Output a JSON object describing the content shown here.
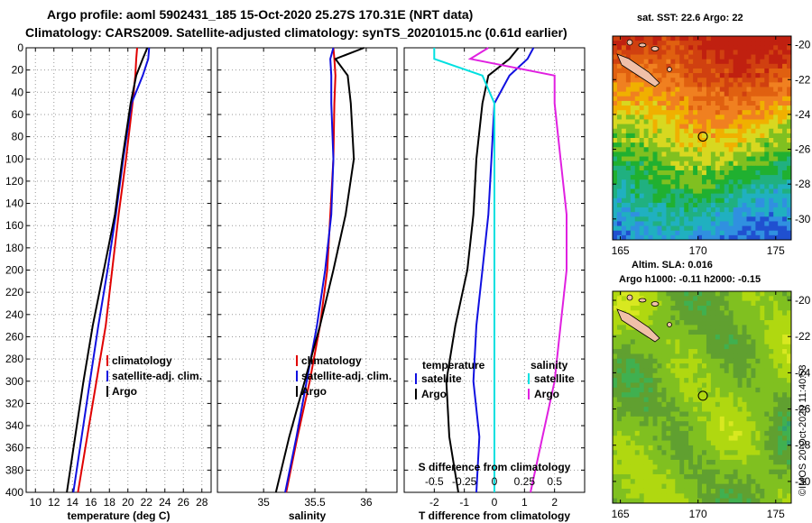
{
  "header": {
    "line1": "Argo profile: aoml 5902431_185 15-Oct-2020 25.27S 170.31E (NRT data)",
    "line2": "Climatology: CARS2009. Satellite-adjusted climatology: synTS_20201015.nc (0.61d earlier)"
  },
  "side_label": "©IMOS 20-Oct-2020 11:40:53",
  "chart_data": [
    {
      "type": "line",
      "id": "temperature",
      "xlabel": "temperature (deg C)",
      "ylabel": "",
      "xlim": [
        9,
        29
      ],
      "ylim": [
        400,
        0
      ],
      "xticks": [
        "10",
        "12",
        "14",
        "16",
        "18",
        "20",
        "22",
        "24",
        "26",
        "28"
      ],
      "yticks": [
        "0",
        "20",
        "40",
        "60",
        "80",
        "100",
        "120",
        "140",
        "160",
        "180",
        "200",
        "220",
        "240",
        "260",
        "280",
        "300",
        "320",
        "340",
        "360",
        "380",
        "400"
      ],
      "grid": true,
      "legend": {
        "position": "bottom-right",
        "entries": [
          "climatology",
          "satellite-adj. clim.",
          "Argo"
        ]
      },
      "depth": [
        0,
        10,
        25,
        50,
        100,
        150,
        200,
        250,
        300,
        350,
        400
      ],
      "series": [
        {
          "name": "climatology",
          "color": "#e00000",
          "values": [
            21.0,
            20.9,
            20.8,
            20.5,
            19.8,
            19.0,
            18.3,
            17.6,
            16.6,
            15.6,
            14.6
          ]
        },
        {
          "name": "satellite-adj. clim.",
          "color": "#1010e0",
          "values": [
            22.3,
            22.2,
            21.6,
            20.4,
            19.5,
            18.7,
            17.8,
            16.8,
            15.9,
            15.0,
            14.1
          ]
        },
        {
          "name": "Argo",
          "color": "#000000",
          "values": [
            22.1,
            21.6,
            20.9,
            20.3,
            19.4,
            18.6,
            17.4,
            16.2,
            15.2,
            14.3,
            13.4
          ]
        }
      ]
    },
    {
      "type": "line",
      "id": "salinity",
      "xlabel": "salinity",
      "xlim": [
        34.55,
        36.3
      ],
      "ylim": [
        400,
        0
      ],
      "xticks": [
        "35",
        "35.5",
        "36"
      ],
      "grid": true,
      "legend": {
        "position": "bottom-right",
        "entries": [
          "climatology",
          "satellite-adj. clim.",
          "Argo"
        ]
      },
      "depth": [
        0,
        10,
        25,
        50,
        100,
        150,
        200,
        250,
        300,
        350,
        400
      ],
      "series": [
        {
          "name": "climatology",
          "color": "#e00000",
          "values": [
            35.68,
            35.69,
            35.7,
            35.69,
            35.68,
            35.65,
            35.62,
            35.55,
            35.45,
            35.33,
            35.22
          ]
        },
        {
          "name": "satellite-adj. clim.",
          "color": "#1010e0",
          "values": [
            35.68,
            35.65,
            35.66,
            35.66,
            35.68,
            35.66,
            35.6,
            35.52,
            35.42,
            35.32,
            35.21
          ]
        },
        {
          "name": "Argo",
          "color": "#000000",
          "values": [
            35.98,
            35.7,
            35.82,
            35.85,
            35.88,
            35.8,
            35.68,
            35.55,
            35.4,
            35.25,
            35.12
          ]
        }
      ]
    },
    {
      "type": "line",
      "id": "difference",
      "xlabel": "T difference from climatology",
      "top_xlabel": "S difference from climatology",
      "xlim": [
        -3,
        3
      ],
      "ylim": [
        400,
        0
      ],
      "xticks": [
        "-2",
        "-1",
        "0",
        "1",
        "2"
      ],
      "top_xticks": [
        "-0.5",
        "-0.25",
        "0",
        "0.25",
        "0.5"
      ],
      "grid": true,
      "legend": {
        "position": "bottom",
        "temperature_title": "temperature",
        "salinity_title": "salinity",
        "entries": [
          "satellite",
          "Argo",
          "satellite",
          "Argo"
        ]
      },
      "depth": [
        0,
        10,
        25,
        50,
        100,
        150,
        200,
        250,
        300,
        350,
        400
      ],
      "series": [
        {
          "name": "T satellite",
          "color": "#1010e0",
          "values": [
            1.3,
            1.1,
            0.5,
            0.0,
            -0.1,
            -0.2,
            -0.4,
            -0.6,
            -0.7,
            -0.5,
            -0.6
          ]
        },
        {
          "name": "T Argo",
          "color": "#000000",
          "values": [
            0.8,
            0.5,
            -0.2,
            -0.4,
            -0.6,
            -0.7,
            -0.9,
            -1.3,
            -1.6,
            -1.5,
            -1.2
          ]
        },
        {
          "name": "S satellite",
          "color": "#00e0e0",
          "values": [
            -0.5,
            -0.5,
            -0.1,
            0.0,
            0.0,
            0.0,
            0.0,
            0.0,
            0.0,
            0.0,
            0.0
          ]
        },
        {
          "name": "S Argo",
          "color": "#e020e0",
          "values": [
            -0.05,
            -0.2,
            0.5,
            0.5,
            0.55,
            0.6,
            0.6,
            0.55,
            0.5,
            0.4,
            0.3
          ]
        }
      ]
    },
    {
      "type": "heatmap",
      "id": "sst-map",
      "title": "sat. SST: 22.6  Argo: 22",
      "x_ticks": [
        "165",
        "170",
        "175"
      ],
      "y_ticks": [
        "-20",
        "-22",
        "-24",
        "-26",
        "-28",
        "-30"
      ],
      "colors": [
        "#c02010",
        "#d04010",
        "#e06010",
        "#f08020",
        "#f0b000",
        "#d8d820",
        "#80c020",
        "#20b030",
        "#20b080",
        "#20b0c0",
        "#3090e0",
        "#2050d0"
      ]
    },
    {
      "type": "heatmap",
      "id": "sla-map",
      "title": "Altim. SLA: 0.016",
      "subtitle": "Argo h1000: -0.11 h2000: -0.15",
      "x_ticks": [
        "165",
        "170",
        "175"
      ],
      "y_ticks": [
        "-20",
        "-22",
        "-24",
        "-26",
        "-28",
        "-30"
      ],
      "colors": [
        "#60a030",
        "#80c020",
        "#b0d810",
        "#d8e820",
        "#40b050",
        "#30a070"
      ]
    }
  ]
}
